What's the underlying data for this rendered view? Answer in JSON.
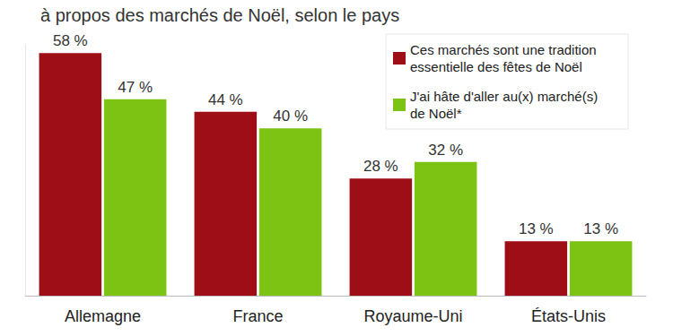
{
  "chart_data": {
    "type": "bar",
    "title": "à propos des marchés de Noël, selon le pays",
    "categories": [
      "Allemagne",
      "France",
      "Royaume-Uni",
      "États-Unis"
    ],
    "series": [
      {
        "name": "Ces marchés sont une tradition essentielle des fêtes de Noël",
        "color": "#9e0e16",
        "values": [
          58,
          44,
          28,
          13
        ],
        "value_labels": [
          "58 %",
          "44 %",
          "28 %",
          "13 %"
        ]
      },
      {
        "name": "J'ai hâte d'aller au(x) marché(s) de Noël*",
        "color": "#7cc314",
        "values": [
          47,
          40,
          32,
          13
        ],
        "value_labels": [
          "47 %",
          "40 %",
          "32 %",
          "13 %"
        ]
      }
    ],
    "ylim": [
      0,
      60
    ],
    "tick_labels": "x",
    "grid": false,
    "legend": "top-right",
    "data_labels": true
  }
}
